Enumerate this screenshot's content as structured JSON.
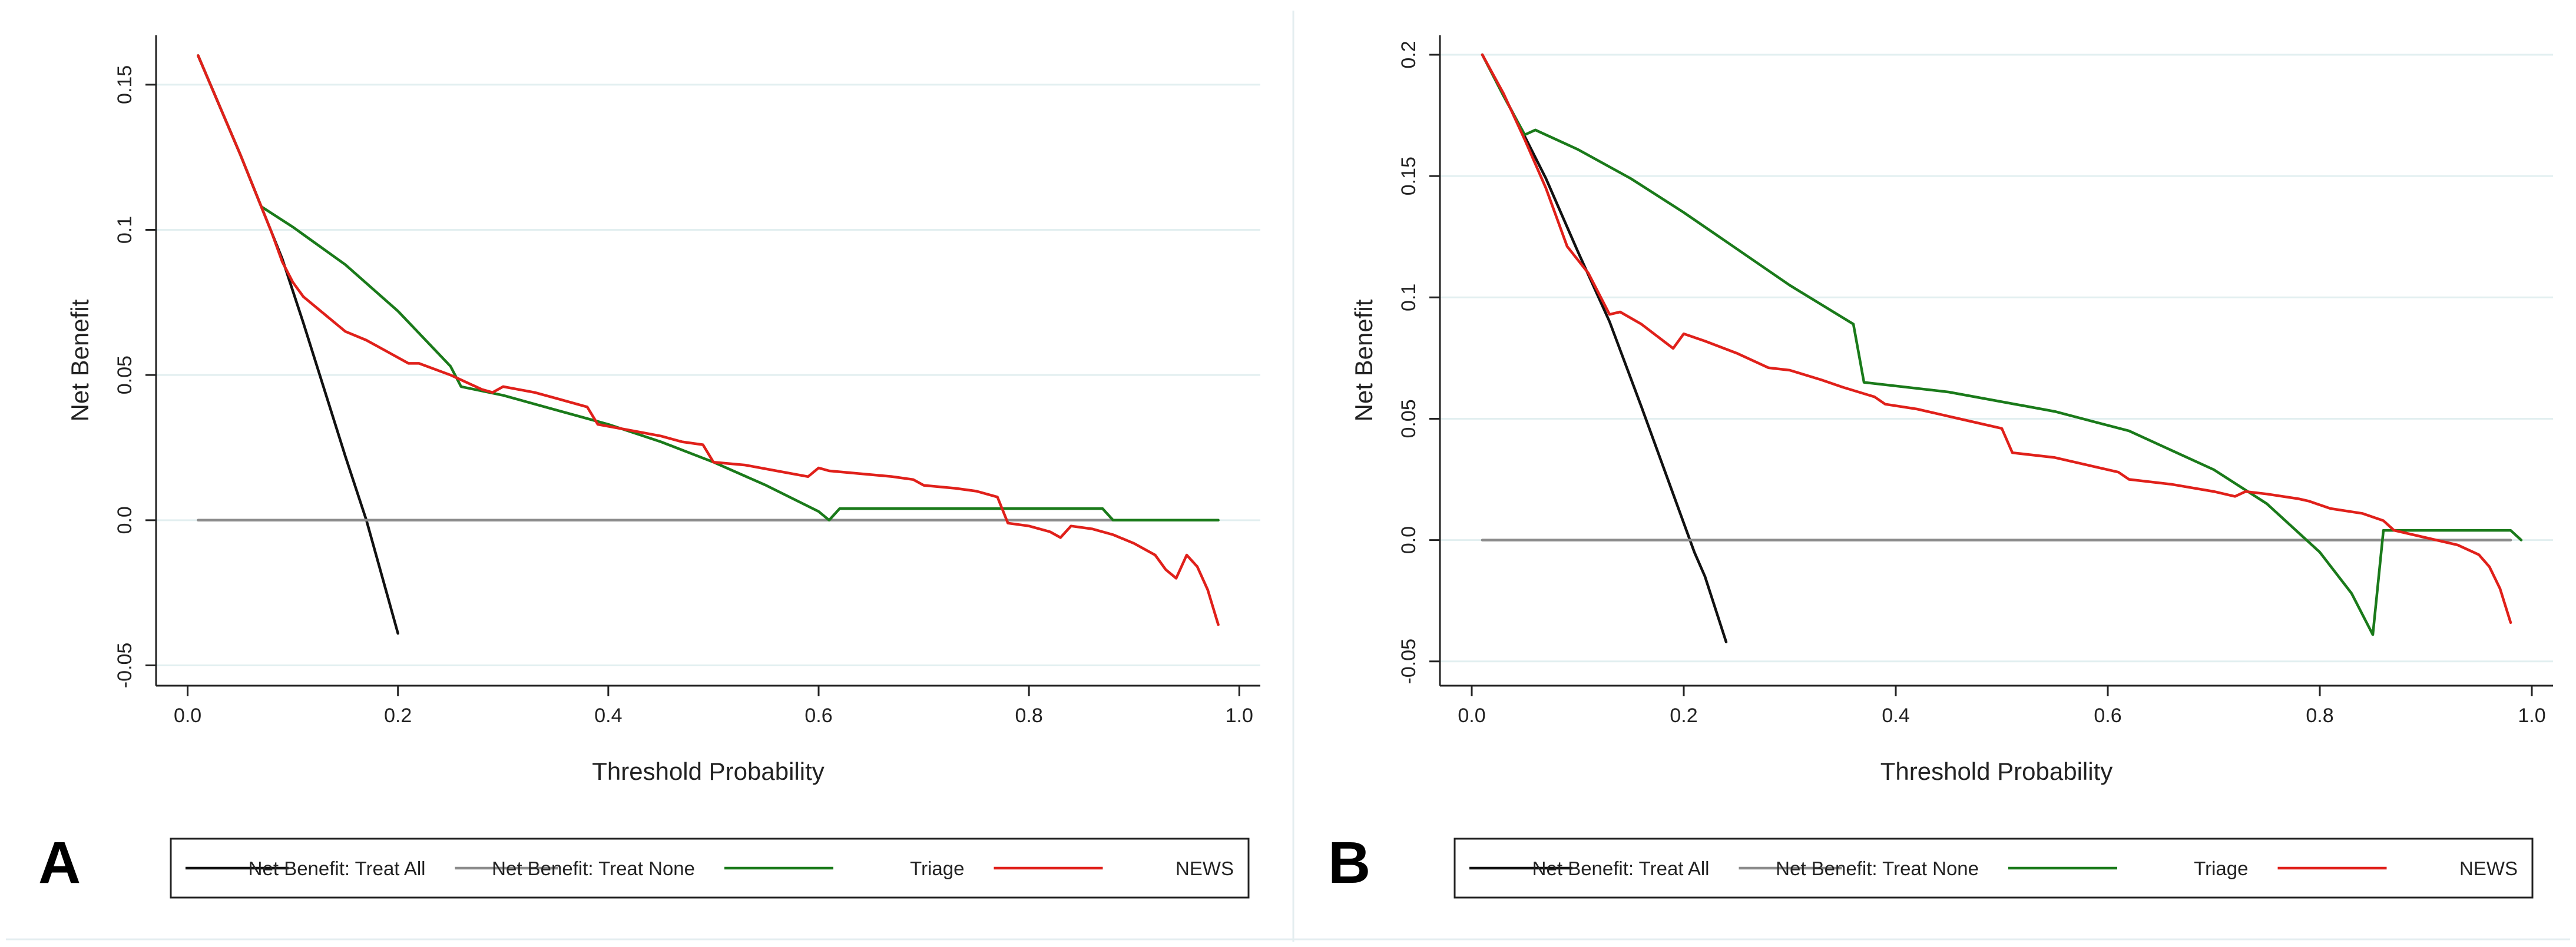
{
  "chart_data": [
    {
      "type": "line",
      "panel_label": "A",
      "xlabel": "Threshold Probability",
      "ylabel": "Net Benefit",
      "xlim": [
        -0.03,
        1.02
      ],
      "ylim": [
        -0.057,
        0.167
      ],
      "x_ticks": [
        0.0,
        0.2,
        0.4,
        0.6,
        0.8,
        1.0
      ],
      "x_tick_labels": [
        "0.0",
        "0.2",
        "0.4",
        "0.6",
        "0.8",
        "1.0"
      ],
      "y_ticks": [
        -0.05,
        0.0,
        0.05,
        0.1,
        0.15
      ],
      "y_tick_labels": [
        "-0.05",
        "0.0",
        "0.05",
        "0.1",
        "0.15"
      ],
      "grid": true,
      "legend_position": "bottom",
      "series": [
        {
          "name": "Net Benefit: Treat All",
          "color": "#111111",
          "x": [
            0.01,
            0.03,
            0.05,
            0.07,
            0.09,
            0.11,
            0.13,
            0.15,
            0.17,
            0.19,
            0.2
          ],
          "y": [
            0.16,
            0.143,
            0.126,
            0.108,
            0.09,
            0.068,
            0.045,
            0.022,
            0.0,
            -0.026,
            -0.039
          ]
        },
        {
          "name": "Net Benefit: Treat None",
          "color": "#8c8c8c",
          "x": [
            0.01,
            0.98
          ],
          "y": [
            0.0,
            0.0
          ]
        },
        {
          "name": "Triage",
          "color": "#1a7a1a",
          "x": [
            0.01,
            0.03,
            0.05,
            0.07,
            0.1,
            0.15,
            0.2,
            0.25,
            0.26,
            0.3,
            0.35,
            0.4,
            0.45,
            0.5,
            0.55,
            0.6,
            0.61,
            0.62,
            0.7,
            0.8,
            0.87,
            0.88,
            0.98
          ],
          "y": [
            0.16,
            0.143,
            0.126,
            0.108,
            0.101,
            0.088,
            0.072,
            0.053,
            0.046,
            0.043,
            0.038,
            0.033,
            0.027,
            0.02,
            0.012,
            0.003,
            0.0,
            0.004,
            0.004,
            0.004,
            0.004,
            0.0,
            0.0
          ]
        },
        {
          "name": "NEWS",
          "color": "#e0201a",
          "x": [
            0.01,
            0.03,
            0.05,
            0.07,
            0.08,
            0.09,
            0.1,
            0.11,
            0.13,
            0.15,
            0.17,
            0.19,
            0.21,
            0.22,
            0.25,
            0.28,
            0.29,
            0.3,
            0.33,
            0.35,
            0.38,
            0.39,
            0.42,
            0.45,
            0.47,
            0.49,
            0.5,
            0.53,
            0.56,
            0.59,
            0.6,
            0.61,
            0.64,
            0.67,
            0.69,
            0.7,
            0.73,
            0.75,
            0.77,
            0.78,
            0.8,
            0.82,
            0.83,
            0.84,
            0.86,
            0.88,
            0.9,
            0.92,
            0.93,
            0.94,
            0.95,
            0.96,
            0.97,
            0.98
          ],
          "y": [
            0.16,
            0.143,
            0.126,
            0.108,
            0.099,
            0.089,
            0.082,
            0.077,
            0.071,
            0.065,
            0.062,
            0.058,
            0.054,
            0.054,
            0.05,
            0.045,
            0.044,
            0.046,
            0.044,
            0.042,
            0.039,
            0.033,
            0.031,
            0.029,
            0.027,
            0.026,
            0.02,
            0.019,
            0.017,
            0.015,
            0.018,
            0.017,
            0.016,
            0.015,
            0.014,
            0.012,
            0.011,
            0.01,
            0.008,
            -0.001,
            -0.002,
            -0.004,
            -0.006,
            -0.002,
            -0.003,
            -0.005,
            -0.008,
            -0.012,
            -0.017,
            -0.02,
            -0.012,
            -0.016,
            -0.024,
            -0.036
          ]
        }
      ]
    },
    {
      "type": "line",
      "panel_label": "B",
      "xlabel": "Threshold Probability",
      "ylabel": "Net Benefit",
      "xlim": [
        -0.03,
        1.02
      ],
      "ylim": [
        -0.06,
        0.208
      ],
      "x_ticks": [
        0.0,
        0.2,
        0.4,
        0.6,
        0.8,
        1.0
      ],
      "x_tick_labels": [
        "0.0",
        "0.2",
        "0.4",
        "0.6",
        "0.8",
        "1.0"
      ],
      "y_ticks": [
        -0.05,
        0.0,
        0.05,
        0.1,
        0.15,
        0.2
      ],
      "y_tick_labels": [
        "-0.05",
        "0.0",
        "0.05",
        "0.1",
        "0.15",
        "0.2"
      ],
      "grid": true,
      "legend_position": "bottom",
      "series": [
        {
          "name": "Net Benefit: Treat All",
          "color": "#111111",
          "x": [
            0.01,
            0.04,
            0.07,
            0.1,
            0.13,
            0.16,
            0.19,
            0.21,
            0.22,
            0.24
          ],
          "y": [
            0.2,
            0.175,
            0.149,
            0.119,
            0.09,
            0.055,
            0.019,
            -0.005,
            -0.015,
            -0.042
          ]
        },
        {
          "name": "Net Benefit: Treat None",
          "color": "#8c8c8c",
          "x": [
            0.01,
            0.98
          ],
          "y": [
            0.0,
            0.0
          ]
        },
        {
          "name": "Triage",
          "color": "#1a7a1a",
          "x": [
            0.01,
            0.03,
            0.05,
            0.06,
            0.1,
            0.15,
            0.2,
            0.25,
            0.3,
            0.36,
            0.37,
            0.45,
            0.55,
            0.62,
            0.7,
            0.75,
            0.8,
            0.83,
            0.85,
            0.86,
            0.9,
            0.98,
            0.99
          ],
          "y": [
            0.2,
            0.183,
            0.167,
            0.169,
            0.161,
            0.149,
            0.135,
            0.12,
            0.105,
            0.089,
            0.065,
            0.061,
            0.053,
            0.045,
            0.029,
            0.015,
            -0.005,
            -0.022,
            -0.039,
            0.004,
            0.004,
            0.004,
            0.0
          ]
        },
        {
          "name": "NEWS",
          "color": "#e0201a",
          "x": [
            0.01,
            0.03,
            0.05,
            0.07,
            0.09,
            0.11,
            0.13,
            0.14,
            0.16,
            0.19,
            0.2,
            0.22,
            0.25,
            0.28,
            0.3,
            0.33,
            0.35,
            0.38,
            0.39,
            0.42,
            0.46,
            0.5,
            0.51,
            0.55,
            0.58,
            0.61,
            0.62,
            0.66,
            0.7,
            0.72,
            0.73,
            0.75,
            0.78,
            0.79,
            0.81,
            0.84,
            0.86,
            0.87,
            0.9,
            0.93,
            0.95,
            0.96,
            0.97,
            0.98
          ],
          "y": [
            0.2,
            0.184,
            0.165,
            0.145,
            0.121,
            0.11,
            0.093,
            0.094,
            0.089,
            0.079,
            0.085,
            0.082,
            0.077,
            0.071,
            0.07,
            0.066,
            0.063,
            0.059,
            0.056,
            0.054,
            0.05,
            0.046,
            0.036,
            0.034,
            0.031,
            0.028,
            0.025,
            0.023,
            0.02,
            0.018,
            0.02,
            0.019,
            0.017,
            0.016,
            0.013,
            0.011,
            0.008,
            0.004,
            0.001,
            -0.002,
            -0.006,
            -0.011,
            -0.02,
            -0.034
          ]
        }
      ]
    }
  ]
}
